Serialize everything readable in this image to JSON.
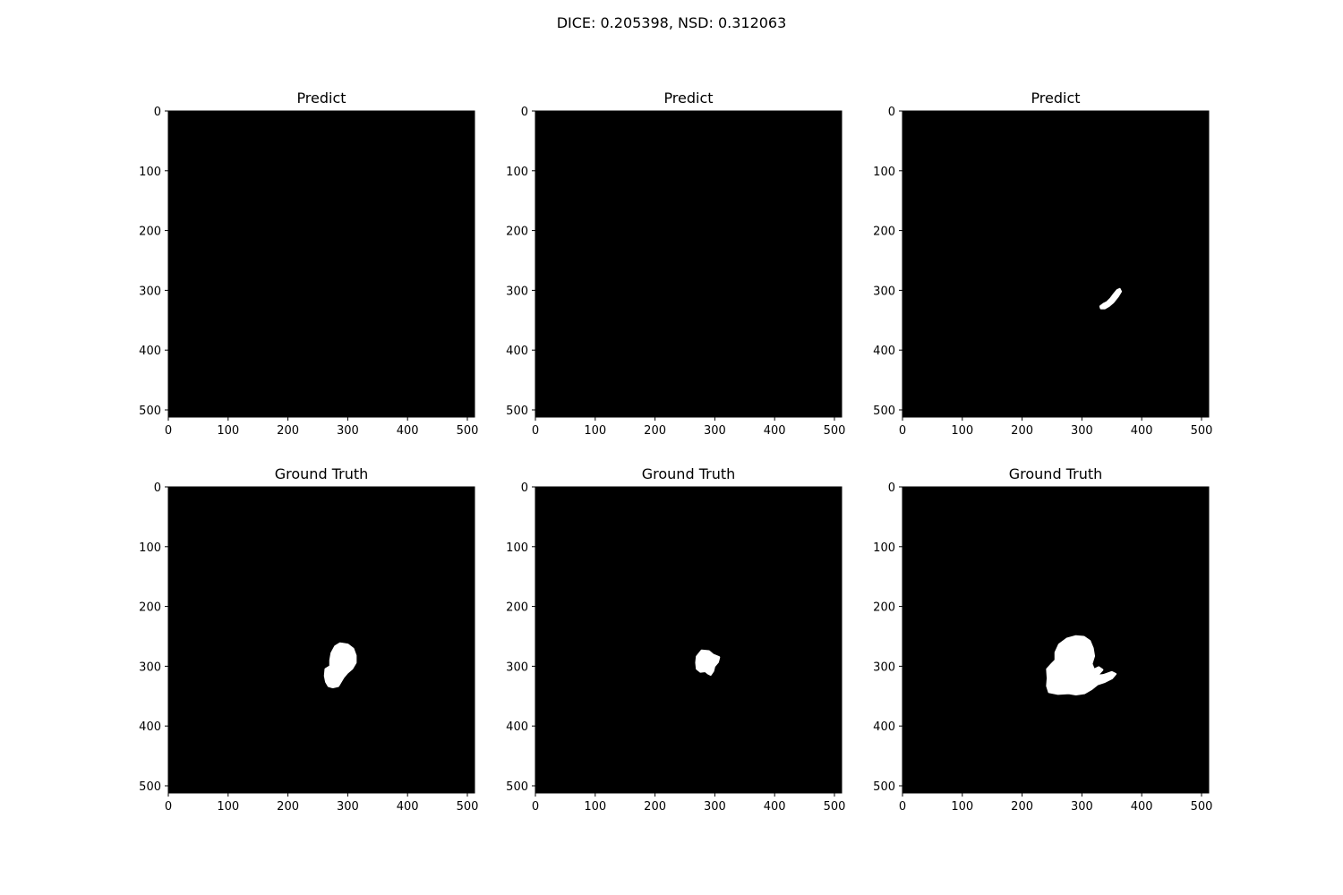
{
  "figure": {
    "title": "DICE: 0.205398, NSD: 0.312063"
  },
  "chart_data": [
    {
      "type": "heatmap",
      "title": "Predict",
      "xlim": [
        0,
        512
      ],
      "ylim": [
        512,
        0
      ],
      "xticks": [
        0,
        100,
        200,
        300,
        400,
        500
      ],
      "yticks": [
        0,
        100,
        200,
        300,
        400,
        500
      ],
      "grid": false,
      "background_value": 0,
      "masks": []
    },
    {
      "type": "heatmap",
      "title": "Predict",
      "xlim": [
        0,
        512
      ],
      "ylim": [
        512,
        0
      ],
      "xticks": [
        0,
        100,
        200,
        300,
        400,
        500
      ],
      "yticks": [
        0,
        100,
        200,
        300,
        400,
        500
      ],
      "grid": false,
      "background_value": 0,
      "masks": []
    },
    {
      "type": "heatmap",
      "title": "Predict",
      "xlim": [
        0,
        512
      ],
      "ylim": [
        512,
        0
      ],
      "xticks": [
        0,
        100,
        200,
        300,
        400,
        500
      ],
      "yticks": [
        0,
        100,
        200,
        300,
        400,
        500
      ],
      "grid": false,
      "background_value": 0,
      "masks": [
        {
          "value": 1,
          "polygon": [
            [
              363,
              298
            ],
            [
              365,
              302
            ],
            [
              360,
              310
            ],
            [
              352,
              320
            ],
            [
              345,
              326
            ],
            [
              338,
              330
            ],
            [
              332,
              330
            ],
            [
              331,
              327
            ],
            [
              336,
              323
            ],
            [
              342,
              320
            ],
            [
              348,
              314
            ],
            [
              354,
              306
            ],
            [
              359,
              300
            ]
          ]
        }
      ]
    },
    {
      "type": "heatmap",
      "title": "Ground Truth",
      "xlim": [
        0,
        512
      ],
      "ylim": [
        512,
        0
      ],
      "xticks": [
        0,
        100,
        200,
        300,
        400,
        500
      ],
      "yticks": [
        0,
        100,
        200,
        300,
        400,
        500
      ],
      "grid": false,
      "background_value": 0,
      "masks": [
        {
          "value": 1,
          "polygon": [
            [
              287,
              262
            ],
            [
              300,
              264
            ],
            [
              309,
              271
            ],
            [
              313,
              282
            ],
            [
              313,
              294
            ],
            [
              307,
              304
            ],
            [
              299,
              311
            ],
            [
              293,
              318
            ],
            [
              288,
              326
            ],
            [
              284,
              333
            ],
            [
              275,
              335
            ],
            [
              268,
              333
            ],
            [
              264,
              326
            ],
            [
              262,
              316
            ],
            [
              263,
              305
            ],
            [
              271,
              300
            ],
            [
              271,
              290
            ],
            [
              273,
              278
            ],
            [
              279,
              267
            ]
          ]
        }
      ]
    },
    {
      "type": "heatmap",
      "title": "Ground Truth",
      "xlim": [
        0,
        512
      ],
      "ylim": [
        512,
        0
      ],
      "xticks": [
        0,
        100,
        200,
        300,
        400,
        500
      ],
      "yticks": [
        0,
        100,
        200,
        300,
        400,
        500
      ],
      "grid": false,
      "background_value": 0,
      "masks": [
        {
          "value": 1,
          "polygon": [
            [
              278,
              274
            ],
            [
              290,
              275
            ],
            [
              297,
              281
            ],
            [
              307,
              285
            ],
            [
              305,
              293
            ],
            [
              299,
              300
            ],
            [
              297,
              308
            ],
            [
              293,
              314
            ],
            [
              289,
              312
            ],
            [
              284,
              308
            ],
            [
              276,
              309
            ],
            [
              270,
              304
            ],
            [
              269,
              294
            ],
            [
              270,
              284
            ]
          ]
        }
      ]
    },
    {
      "type": "heatmap",
      "title": "Ground Truth",
      "xlim": [
        0,
        512
      ],
      "ylim": [
        512,
        0
      ],
      "xticks": [
        0,
        100,
        200,
        300,
        400,
        500
      ],
      "yticks": [
        0,
        100,
        200,
        300,
        400,
        500
      ],
      "grid": false,
      "background_value": 0,
      "masks": [
        {
          "value": 1,
          "polygon": [
            [
              290,
              250
            ],
            [
              303,
              251
            ],
            [
              313,
              258
            ],
            [
              318,
              270
            ],
            [
              320,
              283
            ],
            [
              316,
              296
            ],
            [
              320,
              306
            ],
            [
              328,
              302
            ],
            [
              334,
              306
            ],
            [
              325,
              316
            ],
            [
              336,
              315
            ],
            [
              350,
              310
            ],
            [
              356,
              313
            ],
            [
              350,
              320
            ],
            [
              338,
              326
            ],
            [
              326,
              330
            ],
            [
              316,
              338
            ],
            [
              304,
              345
            ],
            [
              290,
              347
            ],
            [
              278,
              345
            ],
            [
              260,
              346
            ],
            [
              245,
              343
            ],
            [
              242,
              333
            ],
            [
              243,
              320
            ],
            [
              242,
              305
            ],
            [
              250,
              296
            ],
            [
              256,
              290
            ],
            [
              256,
              277
            ],
            [
              262,
              264
            ],
            [
              275,
              254
            ]
          ]
        }
      ]
    }
  ]
}
